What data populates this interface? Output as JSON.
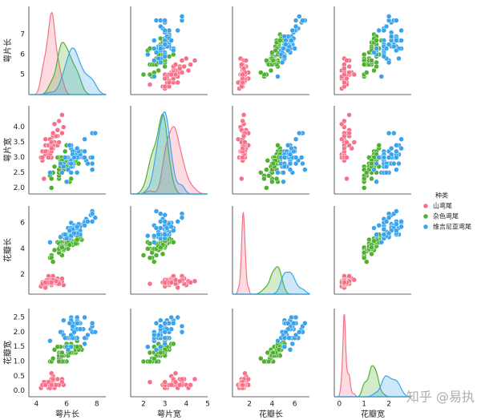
{
  "chart_data": {
    "type": "pairplot",
    "legend_title": "种类",
    "legend": "right",
    "watermark": "知乎 @易执",
    "axes": [
      {
        "label": "萼片长",
        "xlim": [
          3.5,
          8.6
        ],
        "xticks": [
          4,
          6,
          8
        ],
        "ylim": [
          4.0,
          8.4
        ],
        "yticks": [
          5,
          6,
          7
        ]
      },
      {
        "label": "萼片宽",
        "xlim": [
          1.4,
          5.0
        ],
        "xticks": [
          2,
          3,
          4,
          5
        ],
        "ylim": [
          1.8,
          4.7
        ],
        "yticks": [
          {
            "value": 2,
            "label": "2.0"
          },
          {
            "value": 2.5,
            "label": "2.5"
          },
          {
            "value": 3,
            "label": "3.0"
          },
          {
            "value": 3.5,
            "label": "3.5"
          },
          {
            "value": 4,
            "label": "4.0"
          }
        ]
      },
      {
        "label": "花瓣长",
        "xlim": [
          0.5,
          7.3
        ],
        "xticks": [
          2,
          4,
          6
        ],
        "ylim": [
          0.5,
          7.3
        ],
        "yticks": [
          2,
          4,
          6
        ]
      },
      {
        "label": "花瓣宽",
        "xlim": [
          -0.2,
          2.9
        ],
        "xticks": [
          0,
          1,
          2
        ],
        "ylim": [
          -0.2,
          2.8
        ],
        "yticks": [
          {
            "value": 0,
            "label": "0.0"
          },
          {
            "value": 0.5,
            "label": "0.5"
          },
          {
            "value": 1,
            "label": "1.0"
          },
          {
            "value": 1.5,
            "label": "1.5"
          },
          {
            "value": 2,
            "label": "2.0"
          },
          {
            "value": 2.5,
            "label": "2.5"
          }
        ]
      }
    ],
    "series": [
      {
        "name": "山鸢尾",
        "color": "#f77189",
        "values": [
          [
            5.1,
            3.5,
            1.4,
            0.2
          ],
          [
            4.9,
            3.0,
            1.4,
            0.2
          ],
          [
            4.7,
            3.2,
            1.3,
            0.2
          ],
          [
            4.6,
            3.1,
            1.5,
            0.2
          ],
          [
            5.0,
            3.6,
            1.4,
            0.2
          ],
          [
            5.4,
            3.9,
            1.7,
            0.4
          ],
          [
            4.6,
            3.4,
            1.4,
            0.3
          ],
          [
            5.0,
            3.4,
            1.5,
            0.2
          ],
          [
            4.4,
            2.9,
            1.4,
            0.2
          ],
          [
            4.9,
            3.1,
            1.5,
            0.1
          ],
          [
            5.4,
            3.7,
            1.5,
            0.2
          ],
          [
            4.8,
            3.4,
            1.6,
            0.2
          ],
          [
            4.8,
            3.0,
            1.4,
            0.1
          ],
          [
            4.3,
            3.0,
            1.1,
            0.1
          ],
          [
            5.8,
            4.0,
            1.2,
            0.2
          ],
          [
            5.7,
            4.4,
            1.5,
            0.4
          ],
          [
            5.4,
            3.9,
            1.3,
            0.4
          ],
          [
            5.1,
            3.5,
            1.4,
            0.3
          ],
          [
            5.7,
            3.8,
            1.7,
            0.3
          ],
          [
            5.1,
            3.8,
            1.5,
            0.3
          ],
          [
            5.4,
            3.4,
            1.7,
            0.2
          ],
          [
            5.1,
            3.7,
            1.5,
            0.4
          ],
          [
            4.6,
            3.6,
            1.0,
            0.2
          ],
          [
            5.1,
            3.3,
            1.7,
            0.5
          ],
          [
            4.8,
            3.4,
            1.9,
            0.2
          ],
          [
            5.0,
            3.0,
            1.6,
            0.2
          ],
          [
            5.0,
            3.4,
            1.6,
            0.4
          ],
          [
            5.2,
            3.5,
            1.5,
            0.2
          ],
          [
            5.2,
            3.4,
            1.4,
            0.2
          ],
          [
            4.7,
            3.2,
            1.6,
            0.2
          ],
          [
            4.8,
            3.1,
            1.6,
            0.2
          ],
          [
            5.4,
            3.4,
            1.5,
            0.4
          ],
          [
            5.2,
            4.1,
            1.5,
            0.1
          ],
          [
            5.5,
            4.2,
            1.4,
            0.2
          ],
          [
            4.9,
            3.1,
            1.5,
            0.2
          ],
          [
            5.0,
            3.2,
            1.2,
            0.2
          ],
          [
            5.5,
            3.5,
            1.3,
            0.2
          ],
          [
            4.9,
            3.6,
            1.4,
            0.1
          ],
          [
            4.4,
            3.0,
            1.3,
            0.2
          ],
          [
            5.1,
            3.4,
            1.5,
            0.2
          ],
          [
            5.0,
            3.5,
            1.3,
            0.3
          ],
          [
            4.5,
            2.3,
            1.3,
            0.3
          ],
          [
            4.4,
            3.2,
            1.3,
            0.2
          ],
          [
            5.0,
            3.5,
            1.6,
            0.6
          ],
          [
            5.1,
            3.8,
            1.9,
            0.4
          ],
          [
            4.8,
            3.0,
            1.4,
            0.3
          ],
          [
            5.1,
            3.8,
            1.6,
            0.2
          ],
          [
            4.6,
            3.2,
            1.4,
            0.2
          ],
          [
            5.3,
            3.7,
            1.5,
            0.2
          ],
          [
            5.0,
            3.3,
            1.4,
            0.2
          ]
        ]
      },
      {
        "name": "杂色鸢尾",
        "color": "#50b131",
        "values": [
          [
            7.0,
            3.2,
            4.7,
            1.4
          ],
          [
            6.4,
            3.2,
            4.5,
            1.5
          ],
          [
            6.9,
            3.1,
            4.9,
            1.5
          ],
          [
            5.5,
            2.3,
            4.0,
            1.3
          ],
          [
            6.5,
            2.8,
            4.6,
            1.5
          ],
          [
            5.7,
            2.8,
            4.5,
            1.3
          ],
          [
            6.3,
            3.3,
            4.7,
            1.6
          ],
          [
            4.9,
            2.4,
            3.3,
            1.0
          ],
          [
            6.6,
            2.9,
            4.6,
            1.3
          ],
          [
            5.2,
            2.7,
            3.9,
            1.4
          ],
          [
            5.0,
            2.0,
            3.5,
            1.0
          ],
          [
            5.9,
            3.0,
            4.2,
            1.5
          ],
          [
            6.0,
            2.2,
            4.0,
            1.0
          ],
          [
            6.1,
            2.9,
            4.7,
            1.4
          ],
          [
            5.6,
            2.9,
            3.6,
            1.3
          ],
          [
            6.7,
            3.1,
            4.4,
            1.4
          ],
          [
            5.6,
            3.0,
            4.5,
            1.5
          ],
          [
            5.8,
            2.7,
            4.1,
            1.0
          ],
          [
            6.2,
            2.2,
            4.5,
            1.5
          ],
          [
            5.6,
            2.5,
            3.9,
            1.1
          ],
          [
            5.9,
            3.2,
            4.8,
            1.8
          ],
          [
            6.1,
            2.8,
            4.0,
            1.3
          ],
          [
            6.3,
            2.5,
            4.9,
            1.5
          ],
          [
            6.1,
            2.8,
            4.7,
            1.2
          ],
          [
            6.4,
            2.9,
            4.3,
            1.3
          ],
          [
            6.6,
            3.0,
            4.4,
            1.4
          ],
          [
            6.8,
            2.8,
            4.8,
            1.4
          ],
          [
            6.7,
            3.0,
            5.0,
            1.7
          ],
          [
            6.0,
            2.9,
            4.5,
            1.5
          ],
          [
            5.7,
            2.6,
            3.5,
            1.0
          ],
          [
            5.5,
            2.4,
            3.8,
            1.1
          ],
          [
            5.5,
            2.4,
            3.7,
            1.0
          ],
          [
            5.8,
            2.7,
            3.9,
            1.2
          ],
          [
            6.0,
            2.7,
            5.1,
            1.6
          ],
          [
            5.4,
            3.0,
            4.5,
            1.5
          ],
          [
            6.0,
            3.4,
            4.5,
            1.6
          ],
          [
            6.7,
            3.1,
            4.7,
            1.5
          ],
          [
            6.3,
            2.3,
            4.4,
            1.3
          ],
          [
            5.6,
            3.0,
            4.1,
            1.3
          ],
          [
            5.5,
            2.5,
            4.0,
            1.3
          ],
          [
            5.5,
            2.6,
            4.4,
            1.2
          ],
          [
            6.1,
            3.0,
            4.6,
            1.4
          ],
          [
            5.8,
            2.6,
            4.0,
            1.2
          ],
          [
            5.0,
            2.3,
            3.3,
            1.0
          ],
          [
            5.6,
            2.7,
            4.2,
            1.3
          ],
          [
            5.7,
            3.0,
            4.2,
            1.2
          ],
          [
            5.7,
            2.9,
            4.2,
            1.3
          ],
          [
            6.2,
            2.9,
            4.3,
            1.3
          ],
          [
            5.1,
            2.5,
            3.0,
            1.1
          ],
          [
            5.7,
            2.8,
            4.1,
            1.3
          ]
        ]
      },
      {
        "name": "维吉尼亚鸢尾",
        "color": "#3ba3ec",
        "values": [
          [
            6.3,
            3.3,
            6.0,
            2.5
          ],
          [
            5.8,
            2.7,
            5.1,
            1.9
          ],
          [
            7.1,
            3.0,
            5.9,
            2.1
          ],
          [
            6.3,
            2.9,
            5.6,
            1.8
          ],
          [
            6.5,
            3.0,
            5.8,
            2.2
          ],
          [
            7.6,
            3.0,
            6.6,
            2.1
          ],
          [
            4.9,
            2.5,
            4.5,
            1.7
          ],
          [
            7.3,
            2.9,
            6.3,
            1.8
          ],
          [
            6.7,
            2.5,
            5.8,
            1.8
          ],
          [
            7.2,
            3.6,
            6.1,
            2.5
          ],
          [
            6.5,
            3.2,
            5.1,
            2.0
          ],
          [
            6.4,
            2.7,
            5.3,
            1.9
          ],
          [
            6.8,
            3.0,
            5.5,
            2.1
          ],
          [
            5.7,
            2.5,
            5.0,
            2.0
          ],
          [
            5.8,
            2.8,
            5.1,
            2.4
          ],
          [
            6.4,
            3.2,
            5.3,
            2.3
          ],
          [
            6.5,
            3.0,
            5.5,
            1.8
          ],
          [
            7.7,
            3.8,
            6.7,
            2.2
          ],
          [
            7.7,
            2.6,
            6.9,
            2.3
          ],
          [
            6.0,
            2.2,
            5.0,
            1.5
          ],
          [
            6.9,
            3.2,
            5.7,
            2.3
          ],
          [
            5.6,
            2.8,
            4.9,
            2.0
          ],
          [
            7.7,
            2.8,
            6.7,
            2.0
          ],
          [
            6.3,
            2.7,
            4.9,
            1.8
          ],
          [
            6.7,
            3.3,
            5.7,
            2.1
          ],
          [
            7.2,
            3.2,
            6.0,
            1.8
          ],
          [
            6.2,
            2.8,
            4.8,
            1.8
          ],
          [
            6.1,
            3.0,
            4.9,
            1.8
          ],
          [
            6.4,
            2.8,
            5.6,
            2.1
          ],
          [
            7.2,
            3.0,
            5.8,
            1.6
          ],
          [
            7.4,
            2.8,
            6.1,
            1.9
          ],
          [
            7.9,
            3.8,
            6.4,
            2.0
          ],
          [
            6.4,
            2.8,
            5.6,
            2.2
          ],
          [
            6.3,
            2.8,
            5.1,
            1.5
          ],
          [
            6.1,
            2.6,
            5.6,
            1.4
          ],
          [
            7.7,
            3.0,
            6.1,
            2.3
          ],
          [
            6.3,
            3.4,
            5.6,
            2.4
          ],
          [
            6.4,
            3.1,
            5.5,
            1.8
          ],
          [
            6.0,
            3.0,
            4.8,
            1.8
          ],
          [
            6.9,
            3.1,
            5.4,
            2.1
          ],
          [
            6.7,
            3.1,
            5.6,
            2.4
          ],
          [
            6.9,
            3.1,
            5.1,
            2.3
          ],
          [
            5.8,
            2.7,
            5.1,
            1.9
          ],
          [
            6.8,
            3.2,
            5.9,
            2.3
          ],
          [
            6.7,
            3.3,
            5.7,
            2.5
          ],
          [
            6.7,
            3.0,
            5.2,
            2.3
          ],
          [
            6.3,
            2.5,
            5.0,
            1.9
          ],
          [
            6.5,
            3.0,
            5.2,
            2.0
          ],
          [
            6.2,
            3.4,
            5.4,
            2.3
          ],
          [
            5.9,
            3.0,
            5.1,
            1.8
          ]
        ]
      }
    ]
  }
}
